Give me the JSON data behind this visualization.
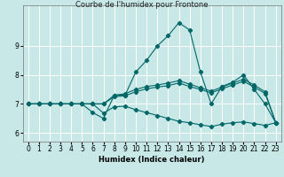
{
  "title": "Courbe de l'humidex pour Frontone",
  "xlabel": "Humidex (Indice chaleur)",
  "background_color": "#c8e8e8",
  "grid_color": "#ffffff",
  "line_color": "#006666",
  "xlim": [
    -0.5,
    23.5
  ],
  "ylim": [
    5.7,
    10.4
  ],
  "xticks": [
    0,
    1,
    2,
    3,
    4,
    5,
    6,
    7,
    8,
    9,
    10,
    11,
    12,
    13,
    14,
    15,
    16,
    17,
    18,
    19,
    20,
    21,
    22,
    23
  ],
  "yticks": [
    6,
    7,
    8,
    9
  ],
  "series": [
    {
      "x": [
        0,
        1,
        2,
        3,
        4,
        5,
        6,
        7,
        8,
        9,
        10,
        11,
        12,
        13,
        14,
        15,
        16,
        17,
        18,
        19,
        20,
        21,
        22,
        23
      ],
      "y": [
        7.0,
        7.0,
        7.0,
        7.0,
        7.0,
        7.0,
        6.7,
        6.5,
        7.3,
        7.3,
        8.1,
        8.5,
        9.0,
        9.35,
        9.8,
        9.55,
        8.1,
        7.0,
        7.6,
        7.75,
        8.0,
        7.5,
        7.0,
        6.35
      ]
    },
    {
      "x": [
        0,
        1,
        2,
        3,
        4,
        5,
        6,
        7,
        8,
        9,
        10,
        11,
        12,
        13,
        14,
        15,
        16,
        17,
        18,
        19,
        20,
        21,
        22,
        23
      ],
      "y": [
        7.0,
        7.0,
        7.0,
        7.0,
        7.0,
        7.0,
        7.0,
        7.0,
        7.3,
        7.35,
        7.5,
        7.6,
        7.65,
        7.72,
        7.8,
        7.68,
        7.56,
        7.44,
        7.58,
        7.72,
        7.85,
        7.65,
        7.42,
        6.35
      ]
    },
    {
      "x": [
        0,
        1,
        2,
        3,
        4,
        5,
        6,
        7,
        8,
        9,
        10,
        11,
        12,
        13,
        14,
        15,
        16,
        17,
        18,
        19,
        20,
        21,
        22,
        23
      ],
      "y": [
        7.0,
        7.0,
        7.0,
        7.0,
        7.0,
        7.0,
        7.0,
        7.0,
        7.25,
        7.28,
        7.42,
        7.52,
        7.58,
        7.63,
        7.72,
        7.6,
        7.5,
        7.38,
        7.52,
        7.65,
        7.78,
        7.58,
        7.36,
        6.35
      ]
    },
    {
      "x": [
        0,
        1,
        2,
        3,
        4,
        5,
        6,
        7,
        8,
        9,
        10,
        11,
        12,
        13,
        14,
        15,
        16,
        17,
        18,
        19,
        20,
        21,
        22,
        23
      ],
      "y": [
        7.0,
        7.0,
        7.0,
        7.0,
        7.0,
        7.0,
        7.0,
        6.68,
        6.9,
        6.92,
        6.8,
        6.7,
        6.6,
        6.5,
        6.4,
        6.35,
        6.28,
        6.22,
        6.3,
        6.35,
        6.38,
        6.32,
        6.26,
        6.35
      ]
    }
  ]
}
